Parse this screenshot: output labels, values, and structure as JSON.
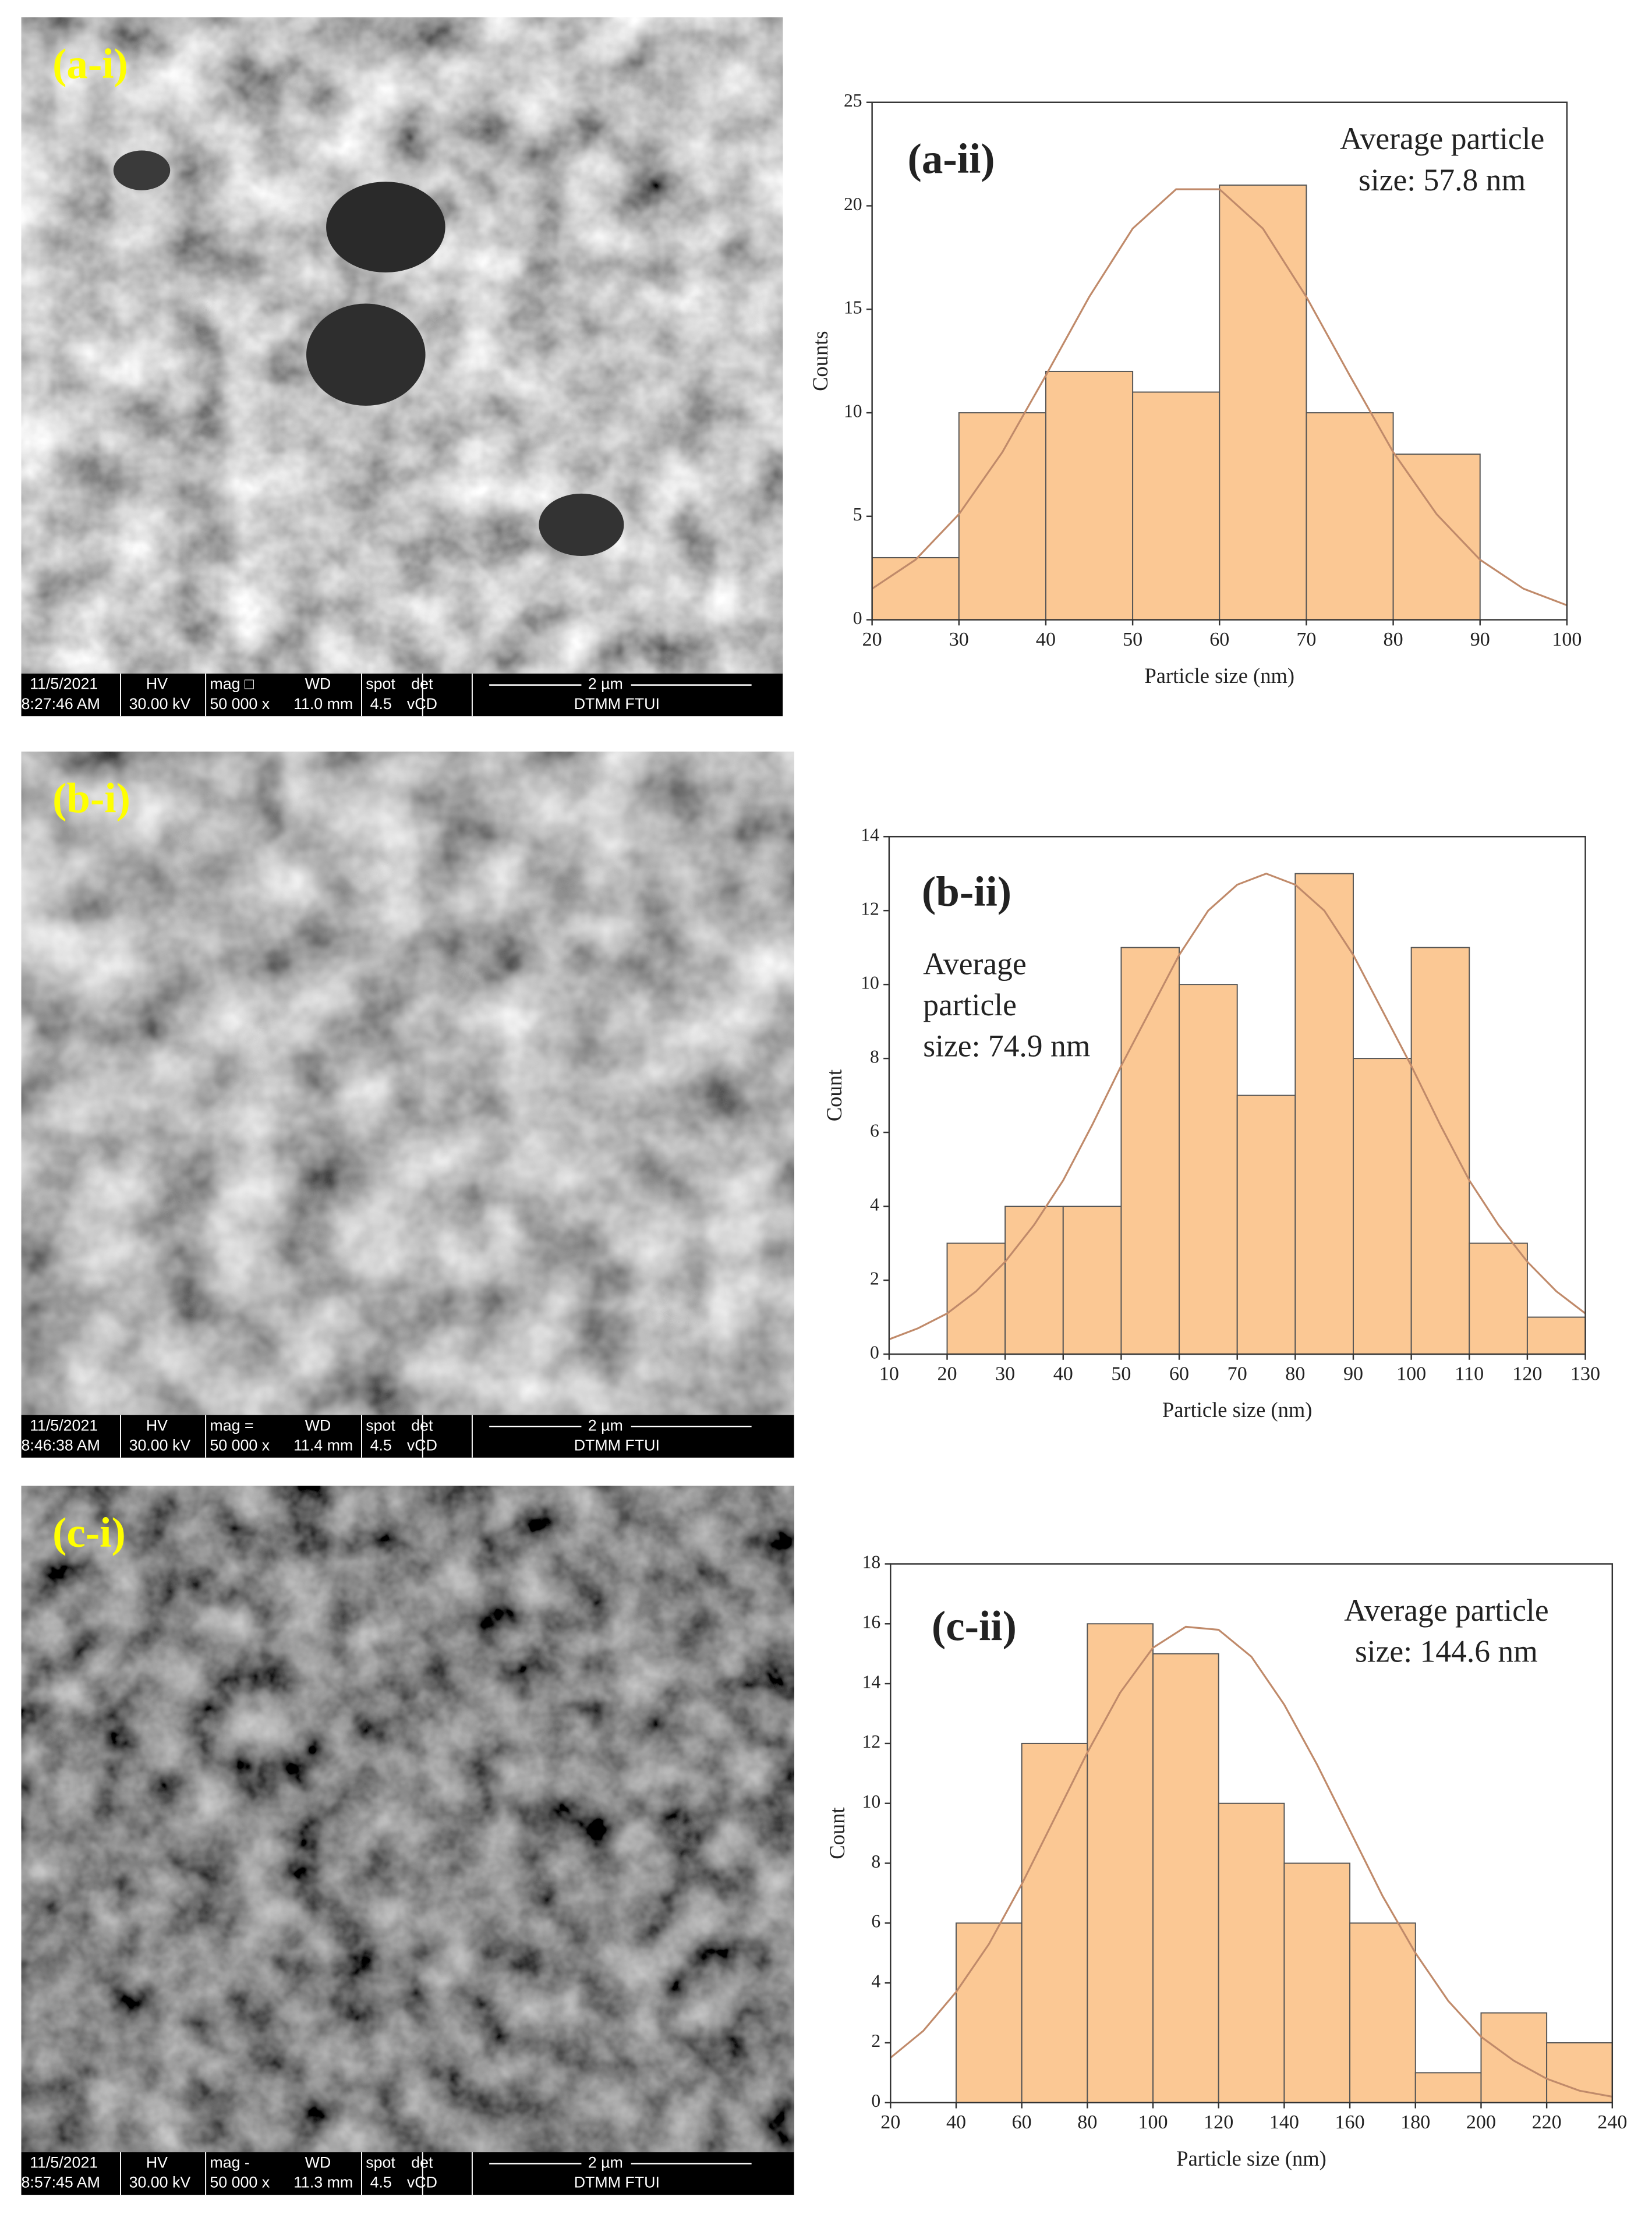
{
  "images": [
    {
      "label": "(a-i)",
      "info": [
        [
          "11/5/2021",
          "HV",
          "mag □",
          "WD",
          "spot",
          "det",
          "2 µm"
        ],
        [
          "8:27:46 AM",
          "30.00 kV",
          "50 000 x",
          "11.0 mm",
          "4.5",
          "vCD",
          "DTMM FTUI"
        ]
      ]
    },
    {
      "label": "(b-i)",
      "info": [
        [
          "11/5/2021",
          "HV",
          "mag =",
          "WD",
          "spot",
          "det",
          "2 µm"
        ],
        [
          "8:46:38 AM",
          "30.00 kV",
          "50 000 x",
          "11.4 mm",
          "4.5",
          "vCD",
          "DTMM FTUI"
        ]
      ]
    },
    {
      "label": "(c-i)",
      "info": [
        [
          "11/5/2021",
          "HV",
          "mag -",
          "WD",
          "spot",
          "det",
          "2 µm"
        ],
        [
          "8:57:45 AM",
          "30.00 kV",
          "50 000 x",
          "11.3 mm",
          "4.5",
          "vCD",
          "DTMM FTUI"
        ]
      ]
    }
  ],
  "chart_data": [
    {
      "type": "histogram",
      "label": "(a-ii)",
      "annotation": [
        "Average particle",
        "size: 57.8 nm"
      ],
      "xlabel": "Particle size (nm)",
      "ylabel": "Counts",
      "bins": [
        20,
        30,
        40,
        50,
        60,
        70,
        80,
        90
      ],
      "values": [
        3,
        10,
        12,
        11,
        21,
        10,
        8
      ],
      "color": "#fbc894",
      "curve": {
        "color": "#c08a6a",
        "x": [
          20,
          25,
          30,
          35,
          40,
          45,
          50,
          55,
          60,
          65,
          70,
          75,
          80,
          85,
          90,
          95,
          100
        ],
        "y": [
          1.5,
          2.9,
          5.1,
          8.1,
          11.8,
          15.6,
          18.9,
          20.8,
          20.8,
          18.9,
          15.6,
          11.8,
          8.1,
          5.1,
          2.9,
          1.5,
          0.7
        ]
      },
      "xlim": [
        20,
        100
      ],
      "xticks": [
        20,
        30,
        40,
        50,
        60,
        70,
        80,
        90,
        100
      ],
      "ylim": [
        0,
        25
      ],
      "yticks": [
        0,
        5,
        10,
        15,
        20,
        25
      ]
    },
    {
      "type": "histogram",
      "label": "(b-ii)",
      "annotation": [
        "Average",
        "particle",
        "size: 74.9 nm"
      ],
      "xlabel": "Particle size (nm)",
      "ylabel": "Count",
      "bins": [
        20,
        30,
        40,
        50,
        60,
        70,
        80,
        90,
        100,
        110,
        120,
        130
      ],
      "values": [
        3,
        4,
        4,
        11,
        10,
        7,
        13,
        8,
        11,
        3,
        1
      ],
      "color": "#fbc894",
      "curve": {
        "color": "#c08a6a",
        "x": [
          10,
          15,
          20,
          25,
          30,
          35,
          40,
          45,
          50,
          55,
          60,
          65,
          70,
          75,
          80,
          85,
          90,
          95,
          100,
          105,
          110,
          115,
          120,
          125,
          130
        ],
        "y": [
          0.4,
          0.7,
          1.1,
          1.7,
          2.5,
          3.5,
          4.7,
          6.2,
          7.8,
          9.3,
          10.8,
          12.0,
          12.7,
          13,
          12.7,
          12.0,
          10.8,
          9.3,
          7.8,
          6.2,
          4.7,
          3.5,
          2.5,
          1.7,
          1.1
        ]
      },
      "xlim": [
        10,
        130
      ],
      "xticks": [
        10,
        20,
        30,
        40,
        50,
        60,
        70,
        80,
        90,
        100,
        110,
        120,
        130
      ],
      "ylim": [
        0,
        14
      ],
      "yticks": [
        0,
        2,
        4,
        6,
        8,
        10,
        12,
        14
      ]
    },
    {
      "type": "histogram",
      "label": "(c-ii)",
      "annotation": [
        "Average particle",
        "size: 144.6 nm"
      ],
      "xlabel": "Particle size (nm)",
      "ylabel": "Count",
      "bins": [
        40,
        60,
        80,
        100,
        120,
        140,
        160,
        180,
        200,
        220,
        240
      ],
      "values": [
        6,
        12,
        16,
        15,
        10,
        8,
        6,
        1,
        3,
        2
      ],
      "color": "#fbc894",
      "curve": {
        "color": "#c08a6a",
        "x": [
          20,
          30,
          40,
          50,
          60,
          70,
          80,
          90,
          100,
          110,
          120,
          130,
          140,
          150,
          160,
          170,
          180,
          190,
          200,
          210,
          220,
          230,
          240
        ],
        "y": [
          1.5,
          2.4,
          3.7,
          5.3,
          7.3,
          9.5,
          11.7,
          13.7,
          15.2,
          15.9,
          15.8,
          14.9,
          13.3,
          11.3,
          9.1,
          6.9,
          5.0,
          3.4,
          2.2,
          1.4,
          0.8,
          0.4,
          0.2
        ]
      },
      "xlim": [
        20,
        240
      ],
      "xticks": [
        20,
        40,
        60,
        80,
        100,
        120,
        140,
        160,
        180,
        200,
        220,
        240
      ],
      "ylim": [
        0,
        18
      ],
      "yticks": [
        0,
        2,
        4,
        6,
        8,
        10,
        12,
        14,
        16,
        18
      ]
    }
  ]
}
